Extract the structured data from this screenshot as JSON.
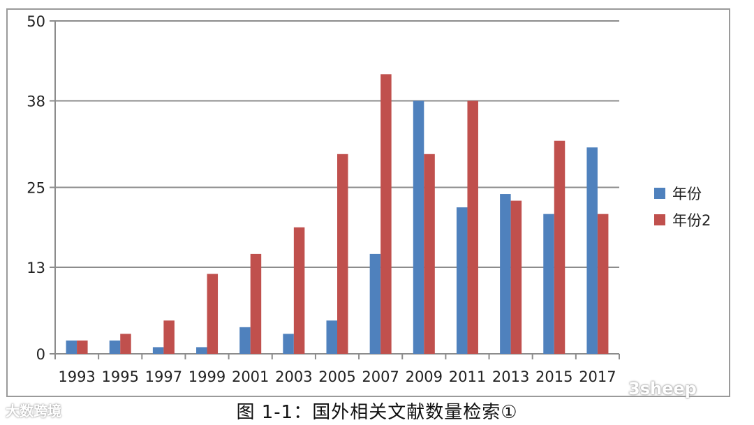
{
  "chart_data": {
    "type": "bar",
    "categories": [
      "1993",
      "1995",
      "1997",
      "1999",
      "2001",
      "2003",
      "2005",
      "2007",
      "2009",
      "2011",
      "2013",
      "2015",
      "2017"
    ],
    "series": [
      {
        "name": "年份",
        "color": "#4f81bd",
        "values": [
          2,
          2,
          1,
          1,
          4,
          3,
          5,
          15,
          38,
          22,
          24,
          21,
          31
        ]
      },
      {
        "name": "年份2",
        "color": "#c0504d",
        "values": [
          2,
          3,
          5,
          12,
          15,
          19,
          30,
          42,
          30,
          38,
          23,
          32,
          21
        ]
      }
    ],
    "yticks": [
      "0",
      "13",
      "25",
      "38",
      "50"
    ],
    "ylim": [
      0,
      50
    ],
    "grid": true,
    "legend": "right"
  },
  "caption": "图 1-1：国外相关文献数量检索①",
  "watermarks": {
    "left": "大数跨境",
    "right": "3sheep"
  }
}
